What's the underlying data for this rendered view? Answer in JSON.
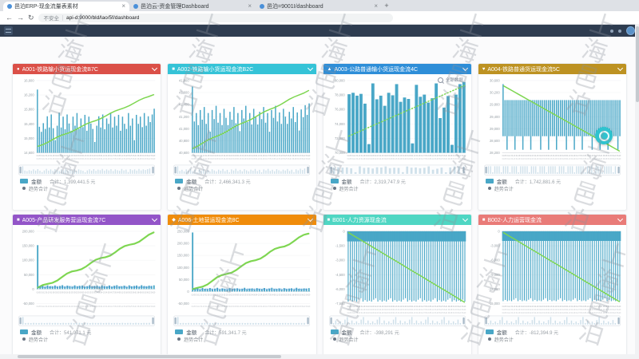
{
  "browser": {
    "tabs": [
      {
        "title": "邑泊ERP-现金流量表素材"
      },
      {
        "title": "邑泊云-资金管理Dashboard"
      },
      {
        "title": "邑泊=9001I/dashboard"
      }
    ],
    "new_tab": "+",
    "back": "←",
    "forward": "→",
    "reload": "↻",
    "security_label": "不安全",
    "url": "api-d:9000/bld/lao/5f/dashboard"
  },
  "watermark": {
    "text": "上海邑泊"
  },
  "colors": {
    "bar": "#49a7c7",
    "trend": "#7ed651",
    "zoom_bar": "#cfe0ea"
  },
  "x_axis_labels_sample": "01-05 01-12 01-19 01-26 02-02 02-09 02-16 02-23 03-02 03-09 03-16 03-23 03-30 04-06 04-13 04-20 04-27 05-04 05-11 05-18 05-25 06-01 06-08 06-15 06-22 06-29",
  "chart_data": [
    {
      "id": "A001",
      "type": "bar",
      "variant": "up",
      "title": "A001-铁路输小货运现金流B7C",
      "icon_char": "●",
      "header_color": "#db5048",
      "y_min": 14600,
      "y_max": 16600,
      "y_ticks": [
        "16,600",
        "16,200",
        "15,800",
        "15,400",
        "15,000",
        "14,600"
      ],
      "bars": [
        16350,
        15320,
        15180,
        15420,
        15260,
        15610,
        15300,
        15660,
        15280,
        14950,
        15350,
        15710,
        15300,
        15600,
        15250,
        15660,
        15410,
        15210,
        15600,
        15350,
        15700,
        15260,
        15550,
        15310,
        15650,
        15210,
        15600,
        15410,
        15260,
        14900,
        15350,
        15610,
        15300,
        15660,
        15250,
        15550,
        15400,
        15710,
        15300,
        15600,
        15350,
        15650,
        15210,
        15600,
        15400,
        15260,
        15700,
        15350,
        15550,
        14950,
        15650,
        15400,
        15600,
        15310,
        15700,
        15350,
        15610,
        15450,
        15660,
        15820
      ],
      "trend": {
        "from": 14780,
        "to": 16220,
        "style": "solid"
      },
      "legend": {
        "series": "金额",
        "total": "合计：1,399,441.5 元",
        "trend_label": "趋势合计"
      }
    },
    {
      "id": "A002",
      "type": "bar",
      "variant": "up",
      "title": "A002-铁路输小货运现金流B2C",
      "icon_char": "■",
      "header_color": "#35c3d7",
      "y_min": 40600,
      "y_max": 41800,
      "y_ticks": [
        "41,800",
        "41,600",
        "41,400",
        "41,200",
        "41,000",
        "40,800",
        "40,600"
      ],
      "bars": [
        41700,
        41120,
        41260,
        41060,
        41310,
        41150,
        41360,
        41080,
        41260,
        40950,
        41310,
        41160,
        41380,
        41100,
        41260,
        41060,
        41330,
        41180,
        41060,
        41280,
        41150,
        41360,
        41090,
        41260,
        40960,
        41310,
        41170,
        41380,
        41110,
        41260,
        41070,
        41330,
        41190,
        41070,
        41280,
        41160,
        41360,
        41100,
        41260,
        40950,
        41310,
        41180,
        41380,
        41120,
        41270,
        41080,
        41330,
        41200,
        41080,
        41280,
        41170,
        41360,
        41110,
        41270,
        40970,
        41320,
        41190,
        41390,
        41230,
        41420
      ],
      "trend": {
        "from": 40680,
        "to": 41640,
        "style": "solid"
      },
      "legend": {
        "series": "金额",
        "total": "合计：2,466,341.3 元",
        "trend_label": "趋势合计"
      }
    },
    {
      "id": "A003",
      "type": "bar",
      "variant": "wide",
      "title": "A003-公路普通输小货运现金流4C",
      "icon_char": "▲",
      "header_color": "#2e8ed8",
      "toolbox_label": "全部数据",
      "y_min": 70000,
      "y_max": 80000,
      "y_ticks": [
        "80,000",
        "78,000",
        "76,000",
        "74,000",
        "72,000",
        "70,000"
      ],
      "bars": [
        78100,
        78300,
        77900,
        78150,
        76800,
        71200,
        79600,
        77400,
        77900,
        76500,
        78300,
        77950,
        79500,
        77050,
        77650,
        77450,
        71300,
        79400,
        77750,
        78050,
        76950,
        77550,
        79600,
        74800,
        76250,
        77850,
        71100,
        78050,
        79500,
        79800
      ],
      "trend": {
        "from": 72300,
        "to": 79300,
        "style": "dotted"
      },
      "legend": {
        "series": "金额",
        "total": "合计：2,319,747.9 元",
        "trend_label": "趋势合计"
      }
    },
    {
      "id": "A004",
      "type": "bar",
      "variant": "flat",
      "title": "A004-铁路普通货运现金流5C",
      "icon_char": "♥",
      "header_color": "#bd9222",
      "y_min": 28200,
      "y_max": 30600,
      "bar_top": 29950,
      "first_top": 30480,
      "y_ticks": [
        "30,600",
        "30,200",
        "29,800",
        "29,400",
        "29,000",
        "28,600",
        "28,200"
      ],
      "bars": [
        28750,
        28750,
        28300,
        28750,
        28750,
        28750,
        28300,
        28750,
        28750,
        28750,
        28300,
        28750,
        28750,
        28750,
        28300,
        28750,
        28750,
        28750,
        28750,
        28300,
        28750,
        28750,
        28750,
        28300,
        28750,
        28750,
        28750,
        28300,
        28750,
        28750,
        28750,
        28750,
        28300,
        28750,
        28750,
        28750,
        28300,
        28750,
        28750,
        28750,
        28300,
        28750,
        28750,
        28750,
        28750,
        28300,
        28750,
        28750,
        28750,
        28300,
        28750,
        28750,
        28750,
        28300,
        28750,
        28750,
        28750,
        28750,
        28300,
        28750
      ],
      "trend": {
        "from": 30420,
        "to": 28260,
        "style": "solid"
      },
      "legend": {
        "series": "金额",
        "total": "合计：1,742,881.6 元",
        "trend_label": "趋势合计"
      }
    },
    {
      "id": "A005",
      "type": "bar",
      "variant": "grow",
      "title": "A005-产品研发服务营运现金流7C",
      "icon_char": "■",
      "header_color": "#9355c8",
      "bar_labels": "1c 30d5",
      "y_min": -50000,
      "y_max": 200000,
      "y_ticks": [
        "200,000",
        "150,000",
        "100,000",
        "50,000",
        "0",
        "-50,000"
      ],
      "bars": [
        152000,
        9000,
        12000,
        8000,
        13000,
        10000,
        9500,
        12500,
        8500,
        11000,
        13500,
        9000,
        12000,
        10500,
        8000,
        13000,
        9500,
        11500,
        12500,
        8500,
        10000,
        13500,
        9000,
        11000,
        12000,
        8000,
        13000,
        10500,
        9500,
        12500,
        8500,
        11500,
        13500,
        9000,
        10000,
        12000,
        8000,
        13000,
        9500,
        11000,
        12500,
        8500,
        13500,
        10500,
        9000,
        12000,
        11000,
        13000
      ],
      "trend": {
        "from": 2000,
        "to": 192000,
        "style": "solid"
      },
      "legend": {
        "series": "金额",
        "total": "合计：541,971.1 元",
        "trend_label": "趋势合计"
      }
    },
    {
      "id": "A006",
      "type": "bar",
      "variant": "grow",
      "title": "A006-土地营运现金流8C",
      "icon_char": "◆",
      "header_color": "#f08c0a",
      "bar_labels": "1c 30d5",
      "y_min": -50000,
      "y_max": 250000,
      "y_ticks": [
        "250,000",
        "200,000",
        "150,000",
        "100,000",
        "50,000",
        "0",
        "-50,000"
      ],
      "bars": [
        245000,
        10000,
        14000,
        9000,
        15000,
        11000,
        10500,
        14500,
        9500,
        12000,
        15500,
        10000,
        13000,
        11500,
        9000,
        14000,
        10500,
        12500,
        13500,
        9500,
        11000,
        15500,
        10000,
        12000,
        13000,
        9000,
        14000,
        11500,
        10500,
        14500,
        9500,
        12500,
        15500,
        10000,
        11000,
        13000,
        9000,
        14000,
        10500,
        12000,
        13500,
        9500,
        15500,
        11500,
        10000,
        13000,
        12000,
        14000
      ],
      "trend": {
        "from": 5000,
        "to": 240000,
        "style": "solid"
      },
      "legend": {
        "series": "金额",
        "total": "合计：591,341.7 元",
        "trend_label": "趋势合计"
      }
    },
    {
      "id": "B001",
      "type": "bar",
      "variant": "comb",
      "title": "B001-人力资源现金流",
      "icon_char": "■",
      "header_color": "#4fd6c3",
      "band_to": -1050,
      "y_min": -7500,
      "y_max": 0,
      "y_ticks": [
        "0",
        "-1,500",
        "-3,000",
        "-4,500",
        "-6,000",
        "-7,500"
      ],
      "bars": [
        -7300,
        -7150,
        -7300,
        -7200,
        -7300,
        -7100,
        -6950,
        -7300,
        -7150,
        -7300,
        -7200,
        -7300,
        -7100,
        -6950,
        -7300,
        -7150,
        -7300,
        -7200,
        -7300,
        -7100,
        -6950,
        -7300,
        -7150,
        -7300,
        -7200,
        -7300,
        -7100,
        -6950,
        -7300,
        -7150,
        -7300,
        -7200,
        -7300,
        -7100,
        -6950,
        -7300,
        -7150,
        -7300,
        -7200,
        -7300,
        -7100,
        -6950,
        -7300,
        -7150,
        -7300,
        -7200,
        -7300,
        -7100,
        -6950,
        -7300,
        -7150,
        -7300,
        -7200,
        -7300,
        -7100,
        -7300
      ],
      "trend": {
        "from": -150,
        "to": -7350,
        "style": "solid"
      },
      "legend": {
        "series": "金额",
        "total": "合计：-398,291 元",
        "trend_label": "趋势合计"
      }
    },
    {
      "id": "B002",
      "type": "bar",
      "variant": "comb",
      "title": "B002-人力运营现金流",
      "icon_char": "■",
      "header_color": "#e97b78",
      "band_to": -2000,
      "y_min": -15000,
      "y_max": 0,
      "y_ticks": [
        "0",
        "-3,000",
        "-6,000",
        "-9,000",
        "-12,000",
        "-15,000"
      ],
      "bars": [
        -14500,
        -14250,
        -14500,
        -14350,
        -14500,
        -14200,
        -13900,
        -14500,
        -14250,
        -14500,
        -14350,
        -14500,
        -14200,
        -13900,
        -14500,
        -14250,
        -14500,
        -14350,
        -14500,
        -14200,
        -13900,
        -14500,
        -14250,
        -14500,
        -14350,
        -14500,
        -14200,
        -13900,
        -14500,
        -14250,
        -14500,
        -14350,
        -14500,
        -14200,
        -13900,
        -14500,
        -14250,
        -14500,
        -14350,
        -14500,
        -14200,
        -13900,
        -14500,
        -14250,
        -14500,
        -14350,
        -14500,
        -14200,
        -13900,
        -14500,
        -14250,
        -14500,
        -14350,
        -14500,
        -14200,
        -14500
      ],
      "trend": {
        "from": -300,
        "to": -14600,
        "style": "solid"
      },
      "legend": {
        "series": "金额",
        "total": "合计：-812,394.9 元",
        "trend_label": "趋势合计"
      }
    }
  ]
}
